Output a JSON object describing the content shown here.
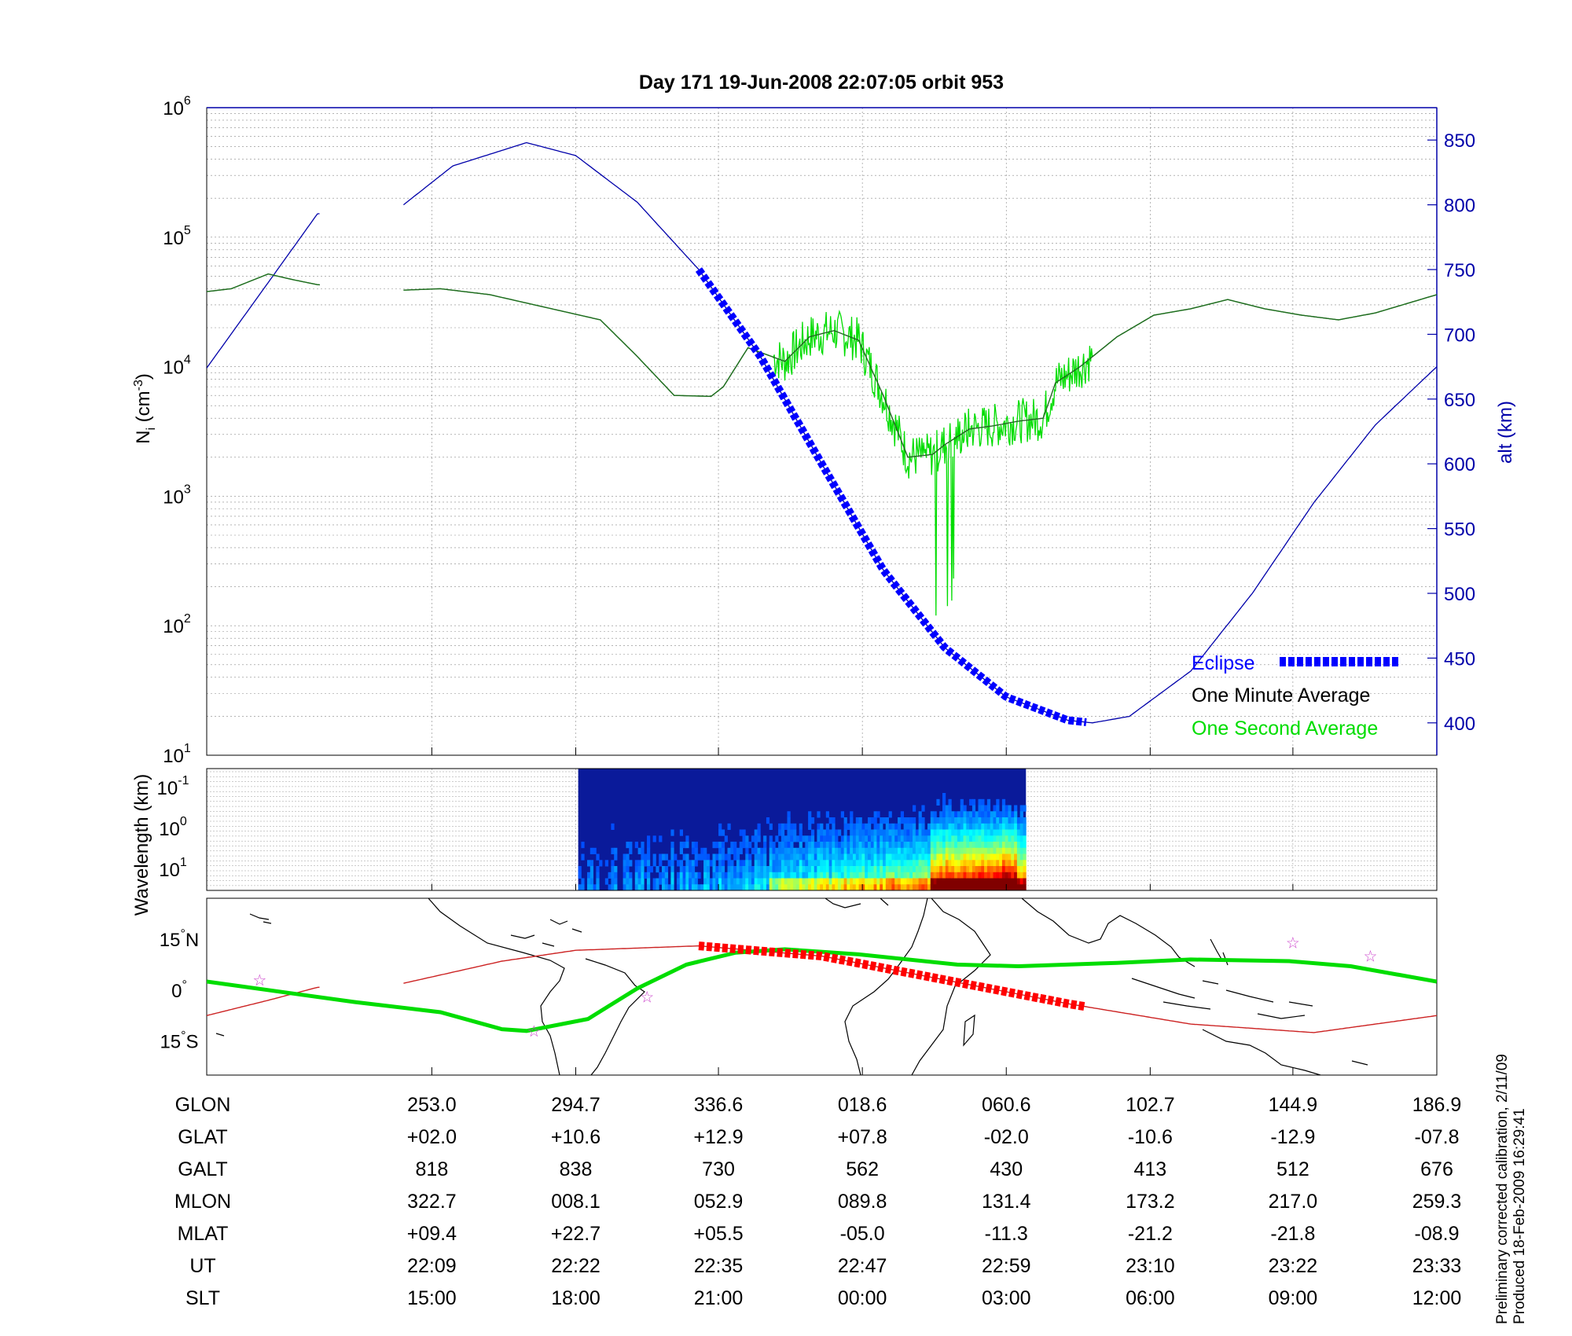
{
  "chart_data": [
    {
      "type": "line",
      "panel": "ion-density",
      "title": "Day 171  19-Jun-2008 22:07:05   orbit 953",
      "ylabel": "N_i (cm^-3)",
      "y2label": "alt (km)",
      "yscale": "log",
      "ylim": [
        10,
        1000000
      ],
      "y2lim": [
        375,
        875
      ],
      "y2_color": "#0000aa",
      "grid": true,
      "legend_position": "bottom-right",
      "yticks": [
        {
          "base": "10",
          "exp": "1",
          "value": 10
        },
        {
          "base": "10",
          "exp": "2",
          "value": 100
        },
        {
          "base": "10",
          "exp": "3",
          "value": 1000
        },
        {
          "base": "10",
          "exp": "4",
          "value": 10000
        },
        {
          "base": "10",
          "exp": "5",
          "value": 100000
        },
        {
          "base": "10",
          "exp": "6",
          "value": 1000000
        }
      ],
      "y2ticks": [
        "400",
        "450",
        "500",
        "550",
        "600",
        "650",
        "700",
        "750",
        "800",
        "850"
      ],
      "legend": [
        {
          "label": "Eclipse",
          "color": "#0000ff"
        },
        {
          "label": "One Minute Average",
          "color": "#000000"
        },
        {
          "label": "One Second Average",
          "color": "#00dd00"
        }
      ],
      "xticks_slt": [
        "15:00",
        "18:00",
        "21:00",
        "00:00",
        "03:00",
        "06:00",
        "09:00",
        "12:00"
      ],
      "series": [
        {
          "name": "One Minute Average",
          "color": "#000000",
          "x": [
            0.0,
            0.02,
            0.05,
            0.07,
            0.09,
            0.16,
            0.19,
            0.23,
            0.26,
            0.32,
            0.35,
            0.38,
            0.41,
            0.42,
            0.44,
            0.47,
            0.49,
            0.51,
            0.53,
            0.55,
            0.57,
            0.59,
            0.6,
            0.62,
            0.64,
            0.66,
            0.68,
            0.69,
            0.71,
            0.74,
            0.77,
            0.8,
            0.83,
            0.86,
            0.89,
            0.92,
            0.95,
            1.0
          ],
          "y": [
            38000,
            40000,
            52000,
            47000,
            43000,
            39000,
            40000,
            36000,
            31000,
            23000,
            12000,
            6000,
            5900,
            7000,
            14000,
            11000,
            17000,
            19000,
            16000,
            6000,
            2000,
            2100,
            2500,
            3300,
            3500,
            3800,
            4000,
            7500,
            10000,
            17000,
            25000,
            28000,
            33000,
            28000,
            25000,
            23000,
            26000,
            36000
          ]
        },
        {
          "name": "One Second Average",
          "color": "#00dd00",
          "x": [
            0.0,
            0.02,
            0.05,
            0.07,
            0.09,
            0.16,
            0.19,
            0.23,
            0.26,
            0.32,
            0.35,
            0.38,
            0.41,
            0.42,
            0.44,
            0.47,
            0.49,
            0.51,
            0.53,
            0.55,
            0.57,
            0.59,
            0.6,
            0.62,
            0.64,
            0.66,
            0.68,
            0.69,
            0.71,
            0.74,
            0.77,
            0.8,
            0.83,
            0.86,
            0.89,
            0.92,
            0.95,
            1.0
          ],
          "y": [
            38000,
            40000,
            52000,
            47000,
            43000,
            39000,
            40000,
            36000,
            31000,
            23000,
            12000,
            6000,
            5900,
            7000,
            14000,
            11000,
            17000,
            19000,
            16000,
            6000,
            2000,
            2100,
            2500,
            3300,
            3500,
            3800,
            4000,
            7500,
            10000,
            17000,
            25000,
            28000,
            33000,
            28000,
            25000,
            23000,
            26000,
            36000
          ]
        },
        {
          "name": "alt",
          "axis": "right",
          "color": "#0000aa",
          "x": [
            0.0,
            0.05,
            0.09,
            0.16,
            0.2,
            0.26,
            0.3,
            0.35,
            0.4,
            0.45,
            0.5,
            0.55,
            0.6,
            0.65,
            0.7,
            0.72,
            0.75,
            0.8,
            0.85,
            0.9,
            0.95,
            1.0
          ],
          "y": [
            674,
            740,
            793,
            800,
            830,
            848,
            838,
            802,
            750,
            683,
            600,
            518,
            458,
            420,
            402,
            400,
            405,
            440,
            500,
            570,
            630,
            675
          ]
        }
      ],
      "eclipse_x": [
        0.4,
        0.715
      ]
    },
    {
      "type": "heatmap",
      "panel": "spectrogram",
      "ylabel": "Wavelength (km)",
      "yticks": [
        {
          "base": "10",
          "exp": "-1"
        },
        {
          "base": "10",
          "exp": "0"
        },
        {
          "base": "10",
          "exp": "1"
        }
      ],
      "x_range": [
        0.302,
        0.666
      ],
      "colormap": "jet"
    },
    {
      "type": "line",
      "panel": "ground-track-map",
      "yticks": [
        {
          "deg": "15",
          "dir": "N",
          "value": 15
        },
        {
          "deg": "0",
          "dir": "",
          "value": 0
        },
        {
          "deg": "15",
          "dir": "S",
          "value": -15
        }
      ],
      "ylim": [
        -25,
        27
      ],
      "series": [
        {
          "name": "magnetic equator",
          "color": "#00dd00",
          "x": [
            0.0,
            0.12,
            0.19,
            0.24,
            0.26,
            0.31,
            0.35,
            0.39,
            0.43,
            0.47,
            0.53,
            0.61,
            0.66,
            0.74,
            0.8,
            0.88,
            0.93,
            1.0
          ],
          "y": [
            2.5,
            -3.5,
            -6.5,
            -11.5,
            -12,
            -8.5,
            0.5,
            7.5,
            11,
            12,
            10.5,
            7.5,
            7,
            8,
            9,
            8.5,
            7,
            2.5
          ]
        },
        {
          "name": "ground track",
          "color": "#cc2222",
          "x": [
            0.0,
            0.05,
            0.09,
            0.16,
            0.24,
            0.3,
            0.4,
            0.5,
            0.6,
            0.7,
            0.8,
            0.9,
            1.0
          ],
          "y": [
            -7.5,
            -3,
            0.8,
            2,
            8.5,
            11.7,
            13,
            10,
            3,
            -4,
            -10,
            -12.5,
            -7.5
          ]
        }
      ],
      "eclipse_x": [
        0.4,
        0.715
      ],
      "stars": [
        {
          "x": 0.043,
          "y": 3
        },
        {
          "x": 0.266,
          "y": -12
        },
        {
          "x": 0.358,
          "y": -2
        },
        {
          "x": 0.883,
          "y": 14
        },
        {
          "x": 0.946,
          "y": 10
        }
      ]
    }
  ],
  "table": {
    "labels": [
      "GLON",
      "GLAT",
      "GALT",
      "MLON",
      "MLAT",
      "UT",
      "SLT"
    ],
    "rows": [
      [
        "253.0",
        "294.7",
        "336.6",
        "018.6",
        "060.6",
        "102.7",
        "144.9",
        "186.9"
      ],
      [
        "+02.0",
        "+10.6",
        "+12.9",
        "+07.8",
        "-02.0",
        "-10.6",
        "-12.9",
        "-07.8"
      ],
      [
        "818",
        "838",
        "730",
        "562",
        "430",
        "413",
        "512",
        "676"
      ],
      [
        "322.7",
        "008.1",
        "052.9",
        "089.8",
        "131.4",
        "173.2",
        "217.0",
        "259.3"
      ],
      [
        "+09.4",
        "+22.7",
        "+05.5",
        "-05.0",
        "-11.3",
        "-21.2",
        "-21.8",
        "-08.9"
      ],
      [
        "22:09",
        "22:22",
        "22:35",
        "22:47",
        "22:59",
        "23:10",
        "23:22",
        "23:33"
      ],
      [
        "15:00",
        "18:00",
        "21:00",
        "00:00",
        "03:00",
        "06:00",
        "09:00",
        "12:00"
      ]
    ]
  },
  "footer": {
    "line1": "Preliminary corrected calibration, 2/11/09",
    "line2": "Produced 18-Feb-2009 16:29:41"
  }
}
